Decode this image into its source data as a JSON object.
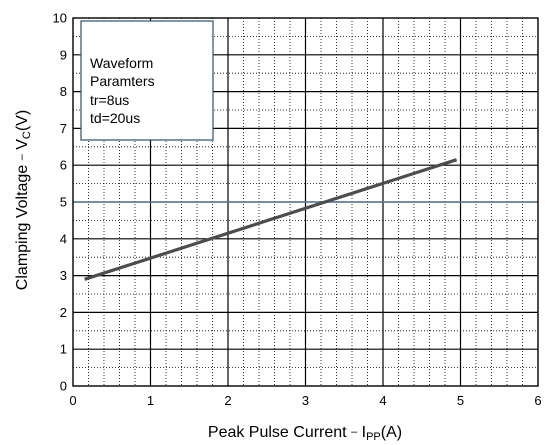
{
  "chart_data": {
    "type": "line",
    "x": [
      0.15,
      4.95
    ],
    "series": [
      {
        "values": [
          2.9,
          6.15
        ]
      }
    ],
    "xlim": [
      0,
      6
    ],
    "ylim": [
      0,
      10
    ],
    "xticks": [
      "0",
      "1",
      "2",
      "3",
      "4",
      "5",
      "6"
    ],
    "yticks": [
      "0",
      "1",
      "2",
      "3",
      "4",
      "5",
      "6",
      "7",
      "8",
      "9",
      "10"
    ],
    "xlabel": {
      "main": "Peak Pulse Current ",
      "dash": "–",
      "symbol": " I",
      "sub": "PP",
      "unit": "(A)"
    },
    "ylabel": {
      "main": "Clamping Voltage ",
      "dash": "–",
      "symbol": " V",
      "sub": "C",
      "unit": "(V)"
    },
    "grid": "major solid, minor dotted",
    "highlight_line_y": 5,
    "colors": {
      "line": "#4d4d4d",
      "highlight": "#5b7f9e",
      "legend_border": "#2f4f6f"
    },
    "legend": {
      "placement": "top-left",
      "lines": [
        "Waveform",
        "Paramters",
        "tr=8us",
        "td=20us"
      ]
    }
  }
}
